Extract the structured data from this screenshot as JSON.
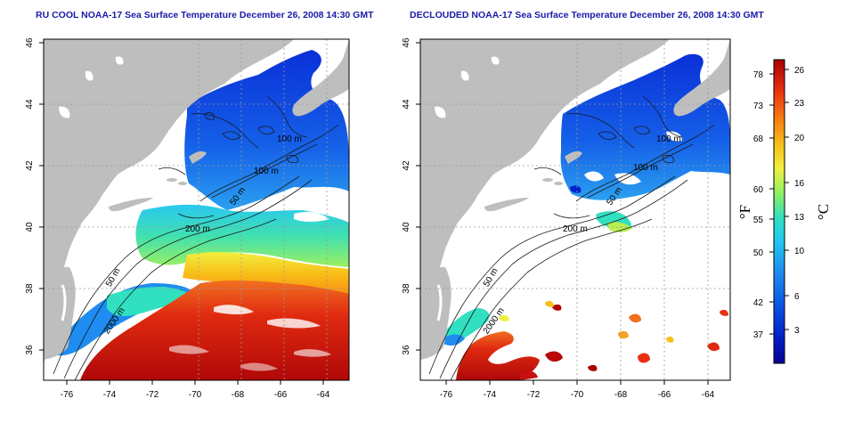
{
  "panels": [
    {
      "id": "left",
      "title": "RU COOL NOAA-17 Sea Surface Temperature December 26, 2008 14:30 GMT"
    },
    {
      "id": "right",
      "title": "DECLOUDED NOAA-17 Sea Surface Temperature December 26, 2008 14:30 GMT"
    }
  ],
  "map_axes": {
    "lon_ticks": [
      "-76",
      "-74",
      "-72",
      "-70",
      "-68",
      "-66",
      "-64"
    ],
    "lat_ticks": [
      "36",
      "38",
      "40",
      "42",
      "44",
      "46"
    ],
    "lon_range": [
      -77.3,
      -63.1
    ],
    "lat_range": [
      35.0,
      46.0
    ]
  },
  "contour_labels": {
    "left": [
      "100 m",
      "100 m",
      "50 m",
      "200 m",
      "50 m",
      "2000 m"
    ],
    "right": [
      "100 m",
      "100 m",
      "50 m",
      "200 m",
      "50 m",
      "2000 m"
    ]
  },
  "colorbar": {
    "fahrenheit_ticks": [
      "78",
      "73",
      "68",
      "60",
      "55",
      "50",
      "42",
      "37"
    ],
    "celsius_ticks": [
      "26",
      "23",
      "20",
      "16",
      "13",
      "10",
      "6",
      "3"
    ],
    "fahrenheit_label": "°F",
    "celsius_label": "°C",
    "range_c": [
      0,
      27
    ],
    "colors": [
      "#0a0096",
      "#0022cc",
      "#0a5ae6",
      "#1e8cf0",
      "#22c8f0",
      "#30e0c0",
      "#90f060",
      "#f0f040",
      "#f8c018",
      "#f88010",
      "#e83010",
      "#a80000"
    ]
  },
  "colors": {
    "land": "#bebebe",
    "ocean_no_data": "#ffffff",
    "contour": "#1a1a1a",
    "grid": "#9a9a9a",
    "title": "#1a1aa8"
  }
}
